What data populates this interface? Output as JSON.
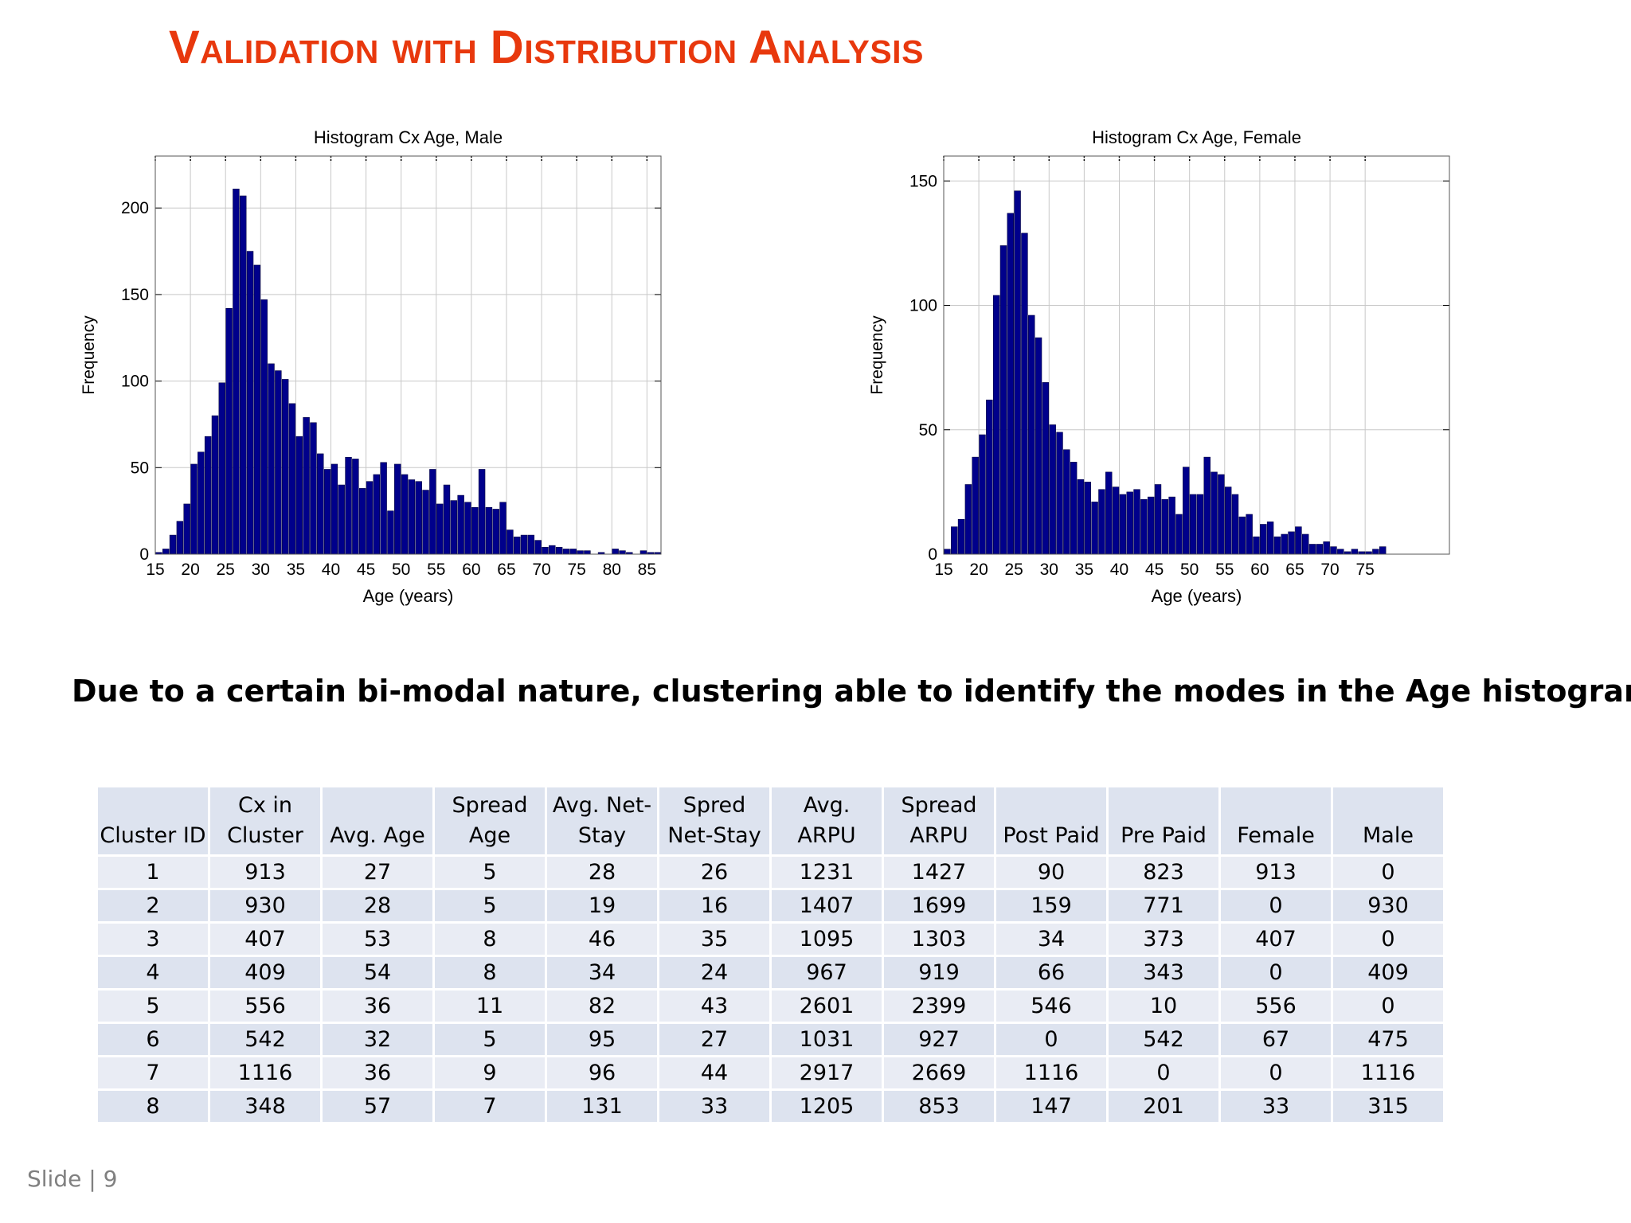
{
  "slide": {
    "title": "Validation with Distribution Analysis",
    "caption": "Due to a certain bi-modal nature, clustering able to identify the modes in the Age histograms",
    "footer": "Slide | 9"
  },
  "colors": {
    "title": "#e8380d",
    "bar": "#00008b",
    "bar_edge": "#000040",
    "grid": "#c8c8c8",
    "table_header": "#dde3ef"
  },
  "chart_data": [
    {
      "type": "bar",
      "title": "Histogram Cx Age, Male",
      "xlabel": "Age (years)",
      "ylabel": "Frequency",
      "xlim": [
        15,
        87
      ],
      "ylim": [
        0,
        230
      ],
      "xticks": [
        15,
        20,
        25,
        30,
        35,
        40,
        45,
        50,
        55,
        60,
        65,
        70,
        75,
        80,
        85
      ],
      "yticks": [
        0,
        50,
        100,
        150,
        200
      ],
      "grid": true,
      "x": [
        16,
        17,
        18,
        19,
        20,
        21,
        22,
        23,
        24,
        25,
        26,
        27,
        28,
        29,
        30,
        31,
        32,
        33,
        34,
        35,
        36,
        37,
        38,
        39,
        40,
        41,
        42,
        43,
        44,
        45,
        46,
        47,
        48,
        49,
        50,
        51,
        52,
        53,
        54,
        55,
        56,
        57,
        58,
        59,
        60,
        61,
        62,
        63,
        64,
        65,
        66,
        67,
        68,
        69,
        70,
        71,
        72,
        73,
        74,
        75,
        76,
        77,
        78,
        79,
        80,
        81,
        82,
        83,
        84,
        85,
        86,
        87
      ],
      "values": [
        1,
        3,
        11,
        19,
        29,
        52,
        59,
        68,
        80,
        99,
        142,
        211,
        207,
        175,
        167,
        147,
        110,
        106,
        101,
        87,
        68,
        79,
        76,
        58,
        49,
        52,
        40,
        56,
        55,
        38,
        42,
        46,
        53,
        25,
        52,
        46,
        43,
        42,
        37,
        49,
        29,
        40,
        31,
        34,
        30,
        27,
        49,
        27,
        26,
        30,
        14,
        10,
        11,
        11,
        8,
        4,
        5,
        4,
        3,
        3,
        2,
        2,
        0,
        1,
        0,
        3,
        2,
        1,
        0,
        2,
        1,
        1
      ]
    },
    {
      "type": "bar",
      "title": "Histogram Cx Age, Female",
      "xlabel": "Age (years)",
      "ylabel": "Frequency",
      "xlim": [
        15,
        87
      ],
      "ylim": [
        0,
        160
      ],
      "xticks": [
        15,
        20,
        25,
        30,
        35,
        40,
        45,
        50,
        55,
        60,
        65,
        70,
        75
      ],
      "yticks": [
        0,
        50,
        100,
        150
      ],
      "grid": true,
      "x": [
        16,
        17,
        18,
        19,
        20,
        21,
        22,
        23,
        24,
        25,
        26,
        27,
        28,
        29,
        30,
        31,
        32,
        33,
        34,
        35,
        36,
        37,
        38,
        39,
        40,
        41,
        42,
        43,
        44,
        45,
        46,
        47,
        48,
        49,
        50,
        51,
        52,
        53,
        54,
        55,
        56,
        57,
        58,
        59,
        60,
        61,
        62,
        63,
        64,
        65,
        66,
        67,
        68,
        69,
        70,
        71,
        72,
        73,
        74,
        75,
        76,
        77,
        78
      ],
      "values": [
        2,
        11,
        14,
        28,
        39,
        48,
        62,
        104,
        124,
        137,
        146,
        129,
        96,
        87,
        69,
        52,
        49,
        42,
        37,
        30,
        29,
        21,
        26,
        33,
        27,
        24,
        25,
        26,
        22,
        23,
        28,
        22,
        23,
        16,
        35,
        24,
        24,
        39,
        33,
        32,
        27,
        24,
        15,
        16,
        7,
        12,
        13,
        7,
        8,
        9,
        11,
        8,
        4,
        4,
        5,
        3,
        2,
        1,
        2,
        1,
        1,
        2,
        3
      ]
    }
  ],
  "table": {
    "headers": [
      "Cluster ID",
      "Cx in Cluster",
      "Avg. Age",
      "Spread Age",
      "Avg. Net-Stay",
      "Spred Net-Stay",
      "Avg. ARPU",
      "Spread ARPU",
      "Post Paid",
      "Pre Paid",
      "Female",
      "Male"
    ],
    "rows": [
      [
        "1",
        "913",
        "27",
        "5",
        "28",
        "26",
        "1231",
        "1427",
        "90",
        "823",
        "913",
        "0"
      ],
      [
        "2",
        "930",
        "28",
        "5",
        "19",
        "16",
        "1407",
        "1699",
        "159",
        "771",
        "0",
        "930"
      ],
      [
        "3",
        "407",
        "53",
        "8",
        "46",
        "35",
        "1095",
        "1303",
        "34",
        "373",
        "407",
        "0"
      ],
      [
        "4",
        "409",
        "54",
        "8",
        "34",
        "24",
        "967",
        "919",
        "66",
        "343",
        "0",
        "409"
      ],
      [
        "5",
        "556",
        "36",
        "11",
        "82",
        "43",
        "2601",
        "2399",
        "546",
        "10",
        "556",
        "0"
      ],
      [
        "6",
        "542",
        "32",
        "5",
        "95",
        "27",
        "1031",
        "927",
        "0",
        "542",
        "67",
        "475"
      ],
      [
        "7",
        "1116",
        "36",
        "9",
        "96",
        "44",
        "2917",
        "2669",
        "1116",
        "0",
        "0",
        "1116"
      ],
      [
        "8",
        "348",
        "57",
        "7",
        "131",
        "33",
        "1205",
        "853",
        "147",
        "201",
        "33",
        "315"
      ]
    ]
  }
}
